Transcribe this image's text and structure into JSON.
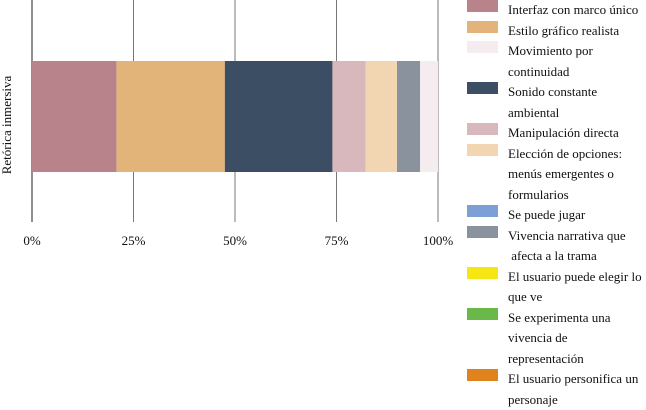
{
  "chart_data": {
    "type": "bar",
    "orientation": "horizontal",
    "stacked": true,
    "normalized": true,
    "categories": [
      "Retórica inmersiva"
    ],
    "ylabel": "Retórica inmersiva",
    "xlim": [
      0,
      100
    ],
    "xticks": [
      "0%",
      "25%",
      "50%",
      "75%",
      "100%"
    ],
    "grid": true,
    "legend_position": "right",
    "series": [
      {
        "name": "Interfaz con marco único",
        "values": [
          20.8
        ],
        "color": "#b8838a"
      },
      {
        "name": "Estilo gráfico realista",
        "values": [
          26.7
        ],
        "color": "#e2b479"
      },
      {
        "name": "Movimiento por continuidad",
        "values": [
          0
        ],
        "color": "#f5ecf0"
      },
      {
        "name": "Sonido constante ambiental",
        "values": [
          26.5
        ],
        "color": "#3b4e64"
      },
      {
        "name": "Manipulación directa",
        "values": [
          8.2
        ],
        "color": "#d8b8bc"
      },
      {
        "name": "Elección de opciones: menús emergentes o formularios",
        "values": [
          7.7
        ],
        "color": "#f2d6b2"
      },
      {
        "name": "Se puede jugar",
        "values": [
          0
        ],
        "color": "#7c9fd6"
      },
      {
        "name": "Vivencia narrativa que\n afecta a la trama",
        "values": [
          5.7
        ],
        "color": "#8a929e"
      },
      {
        "name": "El usuario puede elegir lo que ve",
        "values": [
          0
        ],
        "color": "#f5e614"
      },
      {
        "name": "Se experimenta una vivencia de representación",
        "values": [
          0
        ],
        "color": "#6ab84a"
      },
      {
        "name": "El usuario personifica un personaje",
        "values": [
          0
        ],
        "color": "#e0821e"
      },
      {
        "name": "",
        "values": [
          4.4
        ],
        "color": "#f5ecf0"
      }
    ]
  }
}
